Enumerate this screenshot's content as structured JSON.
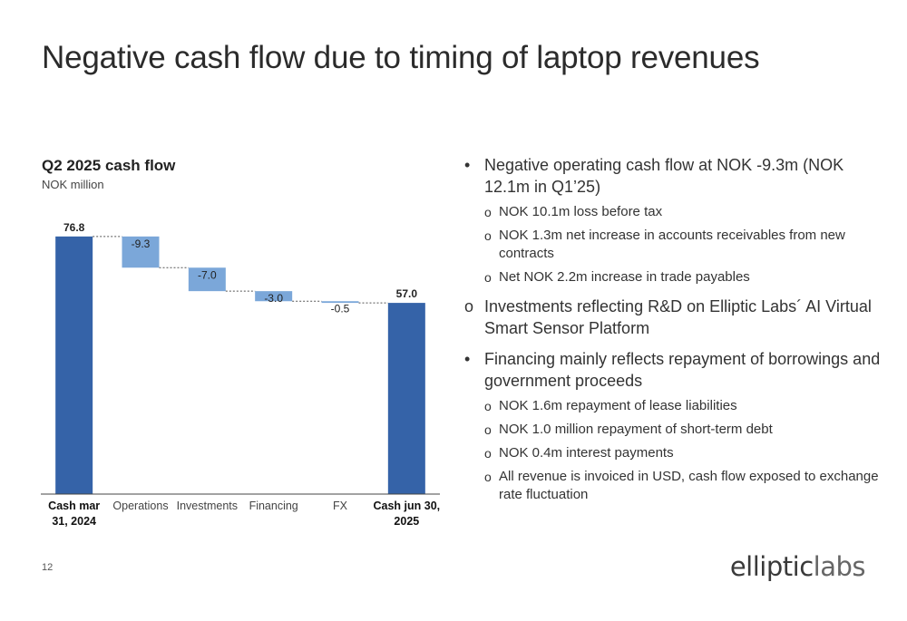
{
  "slide": {
    "title": "Negative cash flow due to timing of laptop revenues",
    "page_number": "12",
    "logo": {
      "part1": "elliptic",
      "part2": "labs"
    }
  },
  "chart_data": {
    "type": "waterfall",
    "title": "Q2 2025 cash flow",
    "subtitle": "NOK million",
    "categories": [
      "Cash mar 31, 2024",
      "Operations",
      "Investments",
      "Financing",
      "FX",
      "Cash jun 30, 2025"
    ],
    "category_lines": [
      [
        "Cash mar",
        "31, 2024"
      ],
      [
        "Operations"
      ],
      [
        "Investments"
      ],
      [
        "Financing"
      ],
      [
        "FX"
      ],
      [
        "Cash jun 30,",
        "2025"
      ]
    ],
    "bold_categories": [
      true,
      false,
      false,
      false,
      false,
      true
    ],
    "values": [
      76.8,
      -9.3,
      -7.0,
      -3.0,
      -0.5,
      57.0
    ],
    "value_labels": [
      "76.8",
      "-9.3",
      "-7.0",
      "-3.0",
      "-0.5",
      "57.0"
    ],
    "kinds": [
      "total",
      "delta",
      "delta",
      "delta",
      "delta",
      "total"
    ],
    "ylim": [
      0,
      80
    ],
    "colors": {
      "total": "#3563a8",
      "delta": "#7ba7d9",
      "connector": "#555555"
    }
  },
  "bullets": [
    {
      "level": 1,
      "marker": "•",
      "text": "Negative operating cash flow at NOK -9.3m (NOK 12.1m in Q1’25)"
    },
    {
      "level": 2,
      "marker": "o",
      "text": "NOK 10.1m loss before tax"
    },
    {
      "level": 2,
      "marker": "o",
      "text": "NOK 1.3m net increase in accounts receivables from new contracts"
    },
    {
      "level": 2,
      "marker": "o",
      "text": "Net NOK 2.2m increase in trade payables"
    },
    {
      "level": 1,
      "marker": "o",
      "text": "Investments reflecting R&D on Elliptic Labs´ AI Virtual Smart Sensor Platform"
    },
    {
      "level": 1,
      "marker": "•",
      "text": "Financing mainly reflects repayment of borrowings and government proceeds"
    },
    {
      "level": 2,
      "marker": "o",
      "text": "NOK 1.6m repayment of lease liabilities"
    },
    {
      "level": 2,
      "marker": "o",
      "text": "NOK 1.0 million repayment of short-term debt"
    },
    {
      "level": 2,
      "marker": "o",
      "text": "NOK 0.4m interest payments"
    },
    {
      "level": 2,
      "marker": "o",
      "text": "All revenue is invoiced in USD, cash flow exposed to exchange rate fluctuation"
    }
  ]
}
